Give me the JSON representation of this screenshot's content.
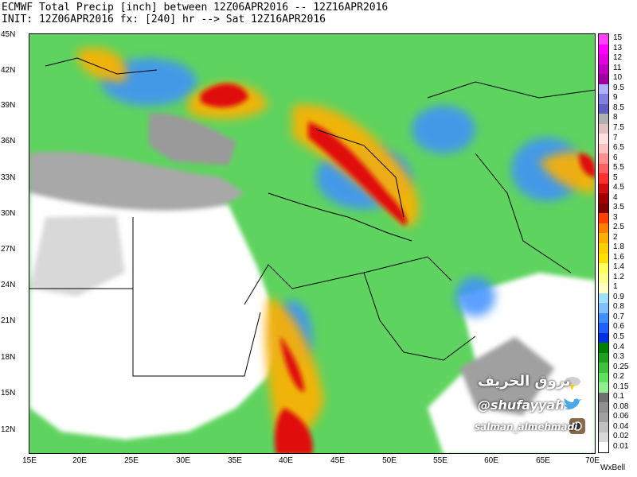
{
  "title": {
    "line1": "ECMWF Total Precip [inch] between 12Z06APR2016 -- 12Z16APR2016",
    "line2": "INIT: 12Z06APR2016 fx: [240] hr --> Sat 12Z16APR2016"
  },
  "axes": {
    "lat_labels": [
      "45N",
      "42N",
      "39N",
      "36N",
      "33N",
      "30N",
      "27N",
      "24N",
      "21N",
      "18N",
      "15N",
      "12N"
    ],
    "lon_labels": [
      "15E",
      "20E",
      "25E",
      "30E",
      "35E",
      "40E",
      "45E",
      "50E",
      "55E",
      "60E",
      "65E",
      "70E"
    ]
  },
  "legend": {
    "labels": [
      "15",
      "13",
      "12",
      "11",
      "10",
      "9.5",
      "9",
      "8.5",
      "8",
      "7.5",
      "7",
      "6.5",
      "6",
      "5.5",
      "5",
      "4.5",
      "4",
      "3.5",
      "3",
      "2.5",
      "2",
      "1.8",
      "1.6",
      "1.4",
      "1.2",
      "1",
      "0.9",
      "0.8",
      "0.7",
      "0.6",
      "0.5",
      "0.4",
      "0.3",
      "0.25",
      "0.2",
      "0.15",
      "0.1",
      "0.08",
      "0.06",
      "0.04",
      "0.02",
      "0.01"
    ],
    "colors": [
      "#ff40ff",
      "#ff00ff",
      "#e000e0",
      "#c000c0",
      "#a000a0",
      "#b0b0ff",
      "#8080e0",
      "#6060c0",
      "#b0b0b0",
      "#e0c0c0",
      "#ffe0e0",
      "#ffc0c0",
      "#ff9090",
      "#ff6060",
      "#ff3030",
      "#d01010",
      "#a00000",
      "#800000",
      "#ff4000",
      "#ff8000",
      "#ffb000",
      "#ffd000",
      "#ffe000",
      "#ffff60",
      "#ffff90",
      "#ffffc0",
      "#a0e0ff",
      "#80c0ff",
      "#4090ff",
      "#2060ff",
      "#0030e0",
      "#008000",
      "#20a020",
      "#40c040",
      "#60e060",
      "#90f090",
      "#707070",
      "#909090",
      "#a0a0a0",
      "#c0c0c0",
      "#d8d8d8",
      "#ffffff"
    ]
  },
  "brand": {
    "name": "بروق الخريف",
    "handle": "@shufayyah",
    "instagram": "salman_almehmadi",
    "credit": "WxBell"
  },
  "colors": {
    "land_base": "#5fd35f",
    "dry": "#ffffff",
    "sea_gray": "#9a9a9a",
    "heavy": "#e01010",
    "moderate": "#ffd000",
    "light_blue": "#4090ff"
  }
}
